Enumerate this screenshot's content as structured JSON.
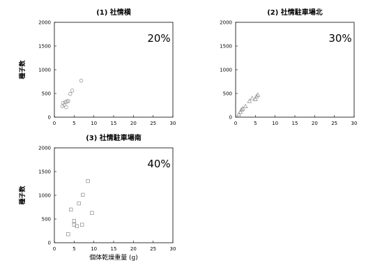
{
  "chart_data": [
    {
      "type": "scatter",
      "title": "(1) 社情横",
      "annotation": "20%",
      "ylabel": "種子数",
      "xlabel": "",
      "xlim": [
        0,
        30
      ],
      "ylim": [
        0,
        2000
      ],
      "xticks": [
        0,
        5,
        10,
        15,
        20,
        25,
        30
      ],
      "yticks": [
        0,
        500,
        1000,
        1500,
        2000
      ],
      "marker": "circle",
      "marker_color": "#888888",
      "grid": false,
      "points": [
        {
          "x": 2.0,
          "y": 230
        },
        {
          "x": 2.2,
          "y": 300
        },
        {
          "x": 2.5,
          "y": 260
        },
        {
          "x": 2.8,
          "y": 320
        },
        {
          "x": 3.0,
          "y": 210
        },
        {
          "x": 3.2,
          "y": 330
        },
        {
          "x": 3.5,
          "y": 340
        },
        {
          "x": 4.0,
          "y": 490
        },
        {
          "x": 4.5,
          "y": 560
        },
        {
          "x": 6.8,
          "y": 770
        }
      ]
    },
    {
      "type": "scatter",
      "title": "(2) 社情駐車場北",
      "annotation": "30%",
      "ylabel": "",
      "xlabel": "",
      "xlim": [
        0,
        30
      ],
      "ylim": [
        0,
        2000
      ],
      "xticks": [
        0,
        5,
        10,
        15,
        20,
        25,
        30
      ],
      "yticks": [
        0,
        500,
        1000,
        1500,
        2000
      ],
      "marker": "triangle",
      "marker_color": "#888888",
      "grid": false,
      "points": [
        {
          "x": 0.8,
          "y": 60
        },
        {
          "x": 1.2,
          "y": 110
        },
        {
          "x": 1.5,
          "y": 160
        },
        {
          "x": 1.8,
          "y": 180
        },
        {
          "x": 2.5,
          "y": 230
        },
        {
          "x": 3.5,
          "y": 340
        },
        {
          "x": 4.2,
          "y": 400
        },
        {
          "x": 5.0,
          "y": 380
        },
        {
          "x": 5.3,
          "y": 440
        },
        {
          "x": 5.6,
          "y": 470
        }
      ]
    },
    {
      "type": "scatter",
      "title": "(3) 社情駐車場南",
      "annotation": "40%",
      "ylabel": "種子数",
      "xlabel": "個体乾燥重量 (g)",
      "xlim": [
        0,
        30
      ],
      "ylim": [
        0,
        2000
      ],
      "xticks": [
        0,
        5,
        10,
        15,
        20,
        25,
        30
      ],
      "yticks": [
        0,
        500,
        1000,
        1500,
        2000
      ],
      "marker": "square",
      "marker_color": "#888888",
      "grid": false,
      "points": [
        {
          "x": 3.5,
          "y": 180
        },
        {
          "x": 4.2,
          "y": 700
        },
        {
          "x": 5.0,
          "y": 460
        },
        {
          "x": 5.0,
          "y": 380
        },
        {
          "x": 5.7,
          "y": 350
        },
        {
          "x": 6.2,
          "y": 830
        },
        {
          "x": 7.0,
          "y": 380
        },
        {
          "x": 7.2,
          "y": 1010
        },
        {
          "x": 8.5,
          "y": 1300
        },
        {
          "x": 9.5,
          "y": 630
        }
      ]
    }
  ]
}
